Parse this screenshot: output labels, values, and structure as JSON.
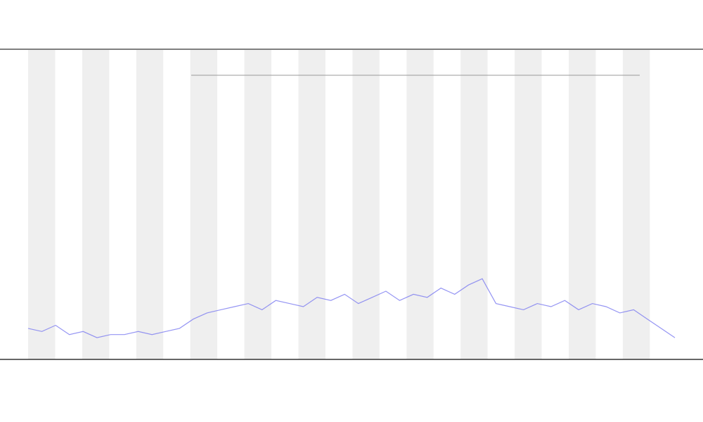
{
  "chart_data": {
    "type": "line",
    "series": [
      {
        "color": "#7b7bf0",
        "values": [
          10,
          9,
          11,
          8,
          9,
          7,
          8,
          8,
          9,
          8,
          9,
          10,
          13,
          15,
          16,
          17,
          18,
          16,
          19,
          18,
          17,
          20,
          19,
          21,
          18,
          20,
          22,
          19,
          21,
          20,
          23,
          21,
          24,
          26,
          18,
          17,
          16,
          18,
          17,
          19,
          16,
          18,
          17,
          15,
          16,
          13,
          10,
          7
        ]
      }
    ],
    "ylim": [
      0,
      100
    ]
  }
}
